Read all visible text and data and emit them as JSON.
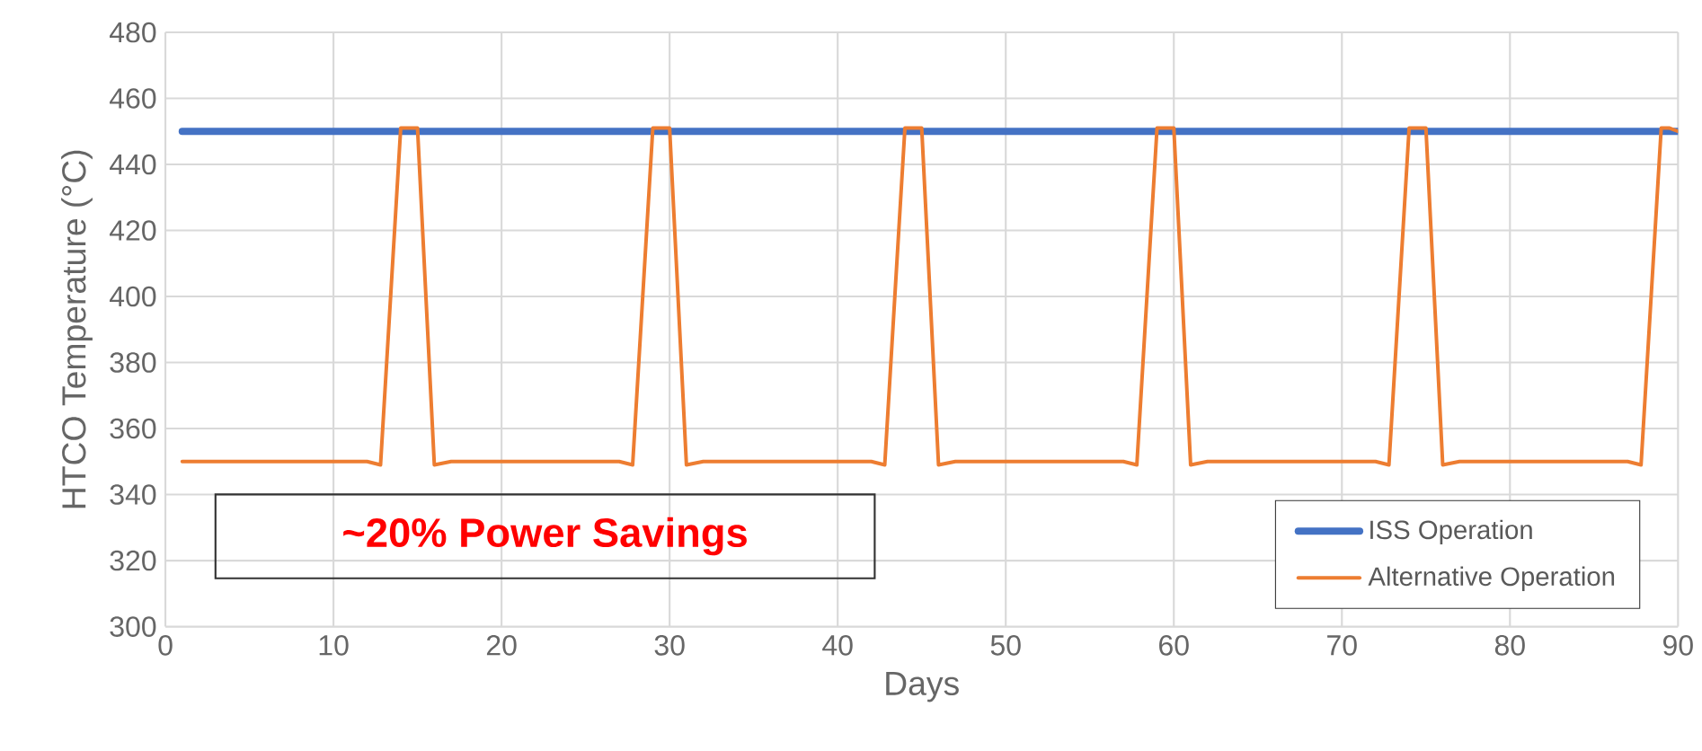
{
  "chart_data": {
    "type": "line",
    "xlabel": "Days",
    "ylabel": "HTCO Temperature (°C)",
    "xlim": [
      0,
      90
    ],
    "xticks": [
      0,
      10,
      20,
      30,
      40,
      50,
      60,
      70,
      80,
      90
    ],
    "ylim": [
      300,
      480
    ],
    "yticks": [
      300,
      320,
      340,
      360,
      380,
      400,
      420,
      440,
      460,
      480
    ],
    "grid": true,
    "legend": "bottom right",
    "marker": "none",
    "line_style": "solid",
    "annotations": [
      "~20% Power Savings"
    ],
    "series": [
      {
        "name": "ISS Operation",
        "color": "#4472c4",
        "x": [
          1,
          90
        ],
        "values": [
          450,
          450
        ]
      },
      {
        "name": "Alternative Operation",
        "color": "#ed7d31",
        "x": [
          1,
          12,
          12.8,
          14,
          15,
          16,
          17,
          27,
          27.8,
          29,
          30,
          31,
          32,
          42,
          42.8,
          44,
          45,
          46,
          47,
          57,
          57.8,
          59,
          60,
          61,
          62,
          72,
          72.8,
          74,
          75,
          76,
          77,
          87,
          87.8,
          89,
          89.5,
          90
        ],
        "values": [
          350,
          350,
          349,
          451,
          451,
          349,
          350,
          350,
          349,
          451,
          451,
          349,
          350,
          350,
          349,
          451,
          451,
          349,
          350,
          350,
          349,
          451,
          451,
          349,
          350,
          350,
          349,
          451,
          451,
          349,
          350,
          350,
          349,
          451,
          451,
          450
        ]
      }
    ]
  }
}
